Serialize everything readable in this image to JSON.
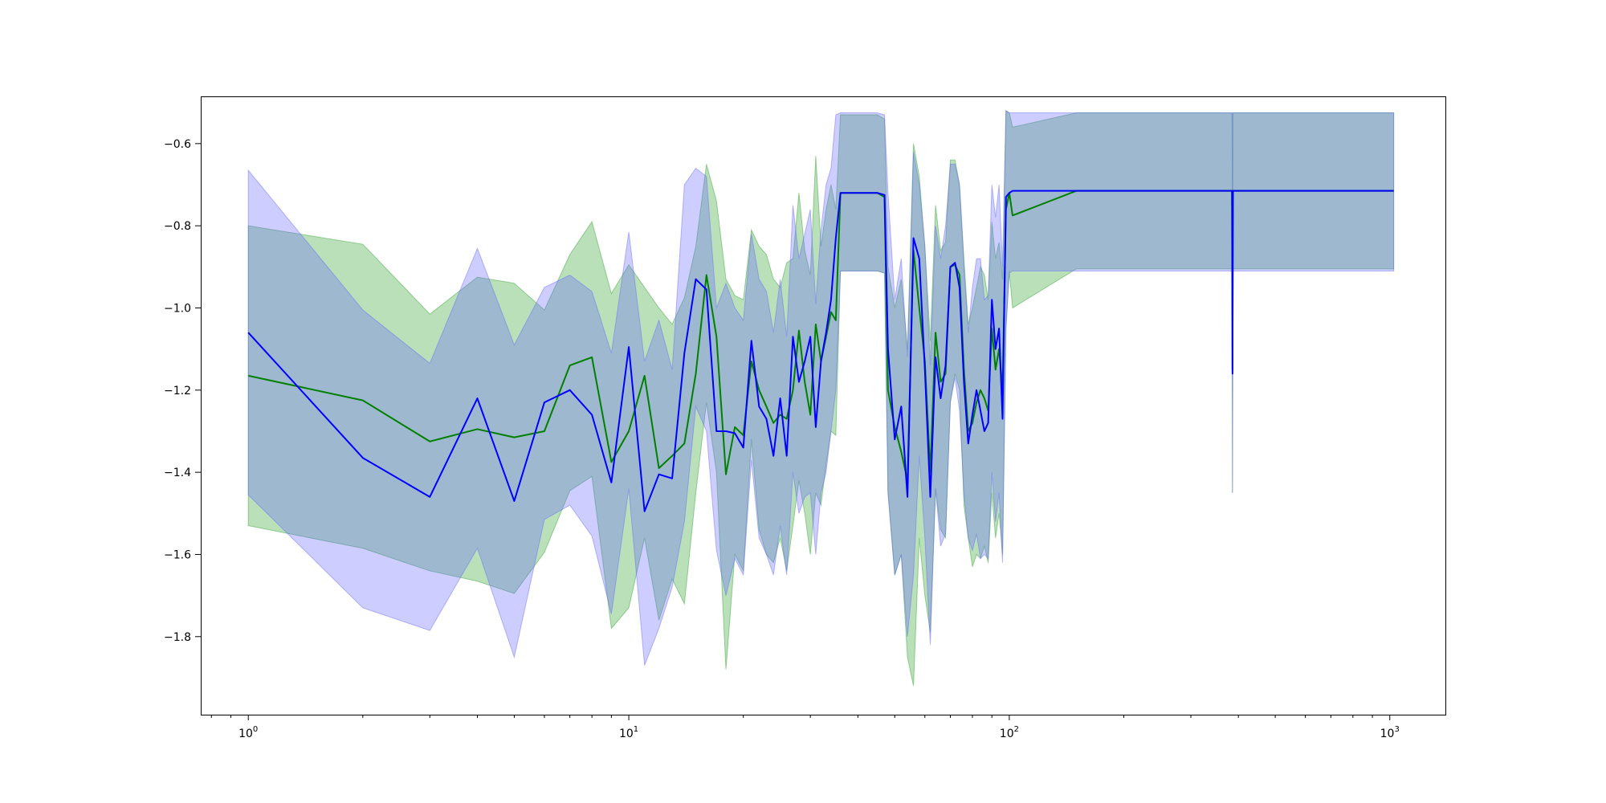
{
  "chart_data": {
    "type": "line",
    "title": "",
    "xlabel": "",
    "ylabel": "",
    "xscale": "log",
    "xlim": [
      0.75,
      1400
    ],
    "ylim": [
      -1.99,
      -0.485
    ],
    "grid": false,
    "legend": "none",
    "x_ticks": [
      {
        "base": "10",
        "exp": "0",
        "value": 1
      },
      {
        "base": "10",
        "exp": "1",
        "value": 10
      },
      {
        "base": "10",
        "exp": "2",
        "value": 100
      },
      {
        "base": "10",
        "exp": "3",
        "value": 1000
      }
    ],
    "y_ticks": [
      {
        "label": "−0.6",
        "value": -0.6
      },
      {
        "label": "−0.8",
        "value": -0.8
      },
      {
        "label": "−1.0",
        "value": -1.0
      },
      {
        "label": "−1.2",
        "value": -1.2
      },
      {
        "label": "−1.4",
        "value": -1.4
      },
      {
        "label": "−1.6",
        "value": -1.6
      },
      {
        "label": "−1.8",
        "value": -1.8
      }
    ],
    "series": [
      {
        "color": "#008000",
        "band_color": "#2ca02c",
        "x": [
          1,
          2,
          3,
          4,
          5,
          6,
          7,
          8,
          9,
          10,
          11,
          12,
          13,
          14,
          15,
          16,
          17,
          18,
          19,
          20,
          21,
          22,
          23,
          24,
          25,
          26,
          27,
          28,
          29,
          30,
          31,
          32,
          33,
          34,
          35,
          36,
          40,
          45,
          47,
          48,
          50,
          52,
          54,
          56,
          58,
          60,
          62,
          64,
          66,
          68,
          70,
          72,
          74,
          76,
          78,
          80,
          82,
          84,
          86,
          88,
          90,
          92,
          94,
          96,
          98,
          100,
          102,
          150,
          300,
          385,
          386,
          387,
          388,
          500,
          1024
        ],
        "y": [
          -1.165,
          -1.225,
          -1.325,
          -1.295,
          -1.315,
          -1.3,
          -1.14,
          -1.12,
          -1.375,
          -1.3,
          -1.165,
          -1.39,
          -1.36,
          -1.33,
          -1.16,
          -0.92,
          -1.07,
          -1.405,
          -1.29,
          -1.31,
          -1.13,
          -1.2,
          -1.24,
          -1.28,
          -1.26,
          -1.27,
          -1.2,
          -1.055,
          -1.18,
          -1.26,
          -1.04,
          -1.13,
          -1.07,
          -1.01,
          -1.03,
          -0.72,
          -0.72,
          -0.72,
          -0.73,
          -1.2,
          -1.29,
          -1.35,
          -1.42,
          -0.86,
          -1.0,
          -1.13,
          -1.4,
          -1.06,
          -1.18,
          -1.16,
          -0.9,
          -0.895,
          -0.92,
          -1.15,
          -1.3,
          -1.28,
          -1.23,
          -1.2,
          -1.22,
          -1.25,
          -1.05,
          -1.15,
          -1.1,
          -1.2,
          -0.76,
          -0.72,
          -0.775,
          -0.715,
          -0.715,
          -0.715,
          -1.15,
          -0.715,
          -0.715,
          -0.715,
          -0.715
        ],
        "lower": [
          -1.53,
          -1.585,
          -1.64,
          -1.665,
          -1.695,
          -1.595,
          -1.445,
          -1.41,
          -1.78,
          -1.73,
          -1.56,
          -1.76,
          -1.66,
          -1.72,
          -1.45,
          -1.23,
          -1.4,
          -1.88,
          -1.6,
          -1.64,
          -1.32,
          -1.54,
          -1.6,
          -1.62,
          -1.56,
          -1.64,
          -1.53,
          -1.42,
          -1.5,
          -1.6,
          -1.45,
          -1.48,
          -1.38,
          -1.3,
          -1.31,
          -0.91,
          -0.91,
          -0.91,
          -0.915,
          -1.45,
          -1.65,
          -1.6,
          -1.85,
          -1.92,
          -1.56,
          -1.7,
          -1.79,
          -1.44,
          -1.54,
          -1.56,
          -1.23,
          -1.16,
          -1.2,
          -1.48,
          -1.56,
          -1.63,
          -1.6,
          -1.61,
          -1.58,
          -1.62,
          -1.45,
          -1.56,
          -1.5,
          -1.6,
          -1.05,
          -0.91,
          -1.0,
          -0.905,
          -0.905,
          -0.905,
          -1.45,
          -0.905,
          -0.905,
          -0.905,
          -0.905
        ],
        "upper": [
          -0.8,
          -0.845,
          -1.015,
          -0.925,
          -0.94,
          -1.005,
          -0.87,
          -0.79,
          -0.965,
          -0.895,
          -0.95,
          -1.0,
          -1.04,
          -0.975,
          -0.85,
          -0.65,
          -0.74,
          -0.93,
          -0.97,
          -0.98,
          -0.81,
          -0.85,
          -0.87,
          -0.93,
          -0.95,
          -0.89,
          -0.88,
          -0.72,
          -0.86,
          -0.92,
          -0.63,
          -0.85,
          -0.76,
          -0.7,
          -0.76,
          -0.53,
          -0.53,
          -0.53,
          -0.54,
          -0.9,
          -1.0,
          -0.93,
          -1.1,
          -0.6,
          -0.68,
          -0.85,
          -1.08,
          -0.75,
          -0.86,
          -0.84,
          -0.64,
          -0.64,
          -0.7,
          -0.88,
          -1.04,
          -1.0,
          -0.95,
          -0.9,
          -0.92,
          -0.98,
          -0.79,
          -0.88,
          -0.84,
          -0.93,
          -0.52,
          -0.525,
          -0.56,
          -0.525,
          -0.525,
          -0.525,
          -0.85,
          -0.525,
          -0.525,
          -0.525,
          -0.525
        ]
      },
      {
        "color": "#0000ff",
        "band_color": "#6666ff",
        "x": [
          1,
          2,
          3,
          4,
          5,
          6,
          7,
          8,
          9,
          10,
          11,
          12,
          13,
          14,
          15,
          16,
          17,
          18,
          19,
          20,
          21,
          22,
          23,
          24,
          25,
          26,
          27,
          28,
          29,
          30,
          31,
          32,
          33,
          34,
          35,
          36,
          40,
          45,
          47,
          48,
          50,
          52,
          54,
          56,
          58,
          60,
          62,
          64,
          66,
          68,
          70,
          72,
          74,
          76,
          78,
          80,
          82,
          84,
          86,
          88,
          90,
          92,
          94,
          96,
          98,
          100,
          102,
          150,
          300,
          385,
          386,
          387,
          388,
          500,
          1024
        ],
        "y": [
          -1.06,
          -1.365,
          -1.46,
          -1.22,
          -1.47,
          -1.23,
          -1.2,
          -1.26,
          -1.425,
          -1.095,
          -1.495,
          -1.405,
          -1.415,
          -1.11,
          -0.93,
          -0.955,
          -1.3,
          -1.3,
          -1.305,
          -1.34,
          -1.08,
          -1.24,
          -1.27,
          -1.36,
          -1.22,
          -1.36,
          -1.07,
          -1.18,
          -1.13,
          -1.07,
          -1.29,
          -1.13,
          -1.06,
          -0.98,
          -0.83,
          -0.72,
          -0.72,
          -0.72,
          -0.725,
          -1.1,
          -1.32,
          -1.24,
          -1.46,
          -0.83,
          -0.88,
          -1.15,
          -1.46,
          -1.12,
          -1.22,
          -1.14,
          -0.9,
          -0.89,
          -0.95,
          -1.18,
          -1.33,
          -1.26,
          -1.2,
          -1.25,
          -1.3,
          -1.28,
          -0.98,
          -1.1,
          -1.05,
          -1.27,
          -0.73,
          -0.72,
          -0.715,
          -0.715,
          -0.715,
          -0.715,
          -1.16,
          -0.715,
          -0.715,
          -0.715,
          -0.715
        ],
        "lower": [
          -1.455,
          -1.73,
          -1.785,
          -1.585,
          -1.85,
          -1.515,
          -1.48,
          -1.555,
          -1.745,
          -1.44,
          -1.87,
          -1.78,
          -1.68,
          -1.52,
          -1.24,
          -1.3,
          -1.59,
          -1.7,
          -1.61,
          -1.65,
          -1.37,
          -1.56,
          -1.6,
          -1.65,
          -1.53,
          -1.65,
          -1.4,
          -1.5,
          -1.46,
          -1.45,
          -1.6,
          -1.45,
          -1.4,
          -1.3,
          -1.2,
          -0.91,
          -0.91,
          -0.91,
          -0.915,
          -1.45,
          -1.65,
          -1.6,
          -1.8,
          -1.65,
          -1.36,
          -1.56,
          -1.82,
          -1.44,
          -1.58,
          -1.55,
          -1.23,
          -1.17,
          -1.25,
          -1.45,
          -1.56,
          -1.59,
          -1.55,
          -1.61,
          -1.6,
          -1.61,
          -1.4,
          -1.52,
          -1.45,
          -1.62,
          -1.05,
          -0.915,
          -0.91,
          -0.91,
          -0.91,
          -0.91,
          -1.45,
          -0.91,
          -0.91,
          -0.91,
          -0.91
        ],
        "upper": [
          -0.665,
          -1.005,
          -1.135,
          -0.855,
          -1.09,
          -0.95,
          -0.92,
          -0.96,
          -1.11,
          -0.815,
          -1.13,
          -1.03,
          -1.15,
          -0.7,
          -0.66,
          -0.68,
          -1.0,
          -0.94,
          -1.0,
          -1.03,
          -0.82,
          -0.93,
          -0.96,
          -1.06,
          -0.93,
          -1.07,
          -0.75,
          -0.88,
          -0.82,
          -0.76,
          -0.99,
          -0.81,
          -0.7,
          -0.66,
          -0.53,
          -0.525,
          -0.525,
          -0.525,
          -0.53,
          -0.72,
          -0.98,
          -0.88,
          -1.12,
          -0.62,
          -0.7,
          -0.85,
          -1.14,
          -0.8,
          -0.88,
          -0.8,
          -0.65,
          -0.65,
          -0.7,
          -0.9,
          -1.06,
          -0.95,
          -0.88,
          -0.88,
          -0.98,
          -0.97,
          -0.7,
          -0.78,
          -0.7,
          -0.9,
          -0.52,
          -0.525,
          -0.525,
          -0.525,
          -0.525,
          -0.525,
          -0.85,
          -0.525,
          -0.525,
          -0.525,
          -0.525
        ]
      }
    ]
  }
}
